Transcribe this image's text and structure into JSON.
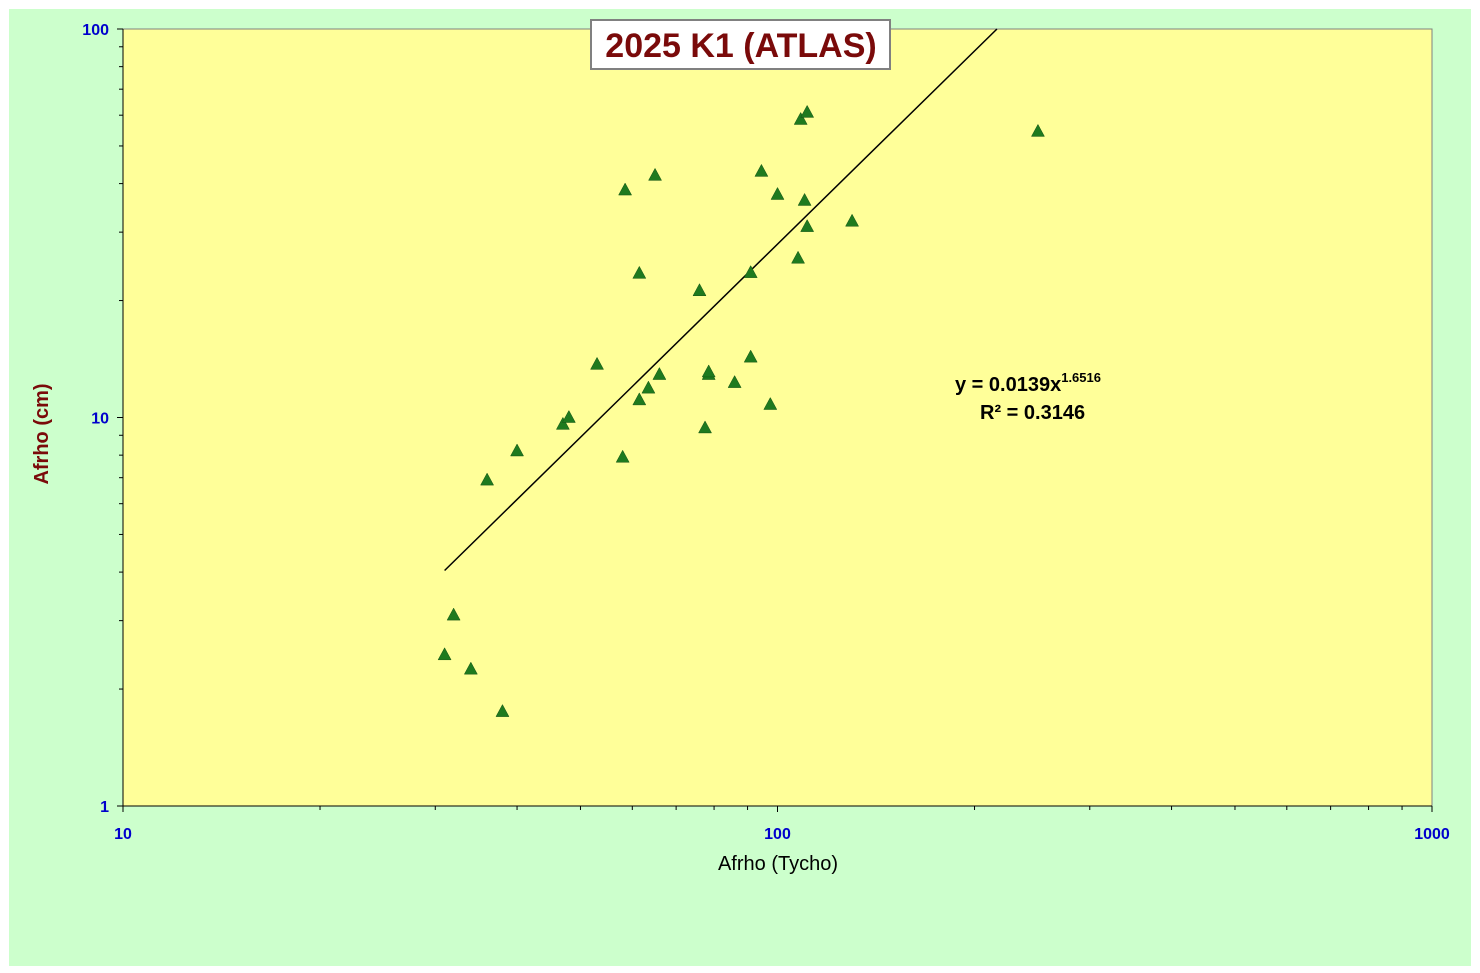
{
  "colors": {
    "chart_area_bg": "#ccffcc",
    "plot_bg": "#ffff99",
    "marker": "#1e7a1e",
    "trendline": "#000000",
    "title": "#7a0a0a",
    "tick_labels": "#0000cc"
  },
  "chart_data": {
    "type": "scatter",
    "title": "2025 K1 (ATLAS)",
    "xlabel": "Afrho (Tycho)",
    "ylabel": "Afrho (cm)",
    "xscale": "log",
    "yscale": "log",
    "xlim": [
      10,
      1000
    ],
    "ylim": [
      1,
      100
    ],
    "x_ticks": [
      "10",
      "100",
      "1000"
    ],
    "y_ticks": [
      "1",
      "10",
      "100"
    ],
    "grid": false,
    "legend": "none",
    "marker": "triangle",
    "series": [
      {
        "points": [
          [
            31,
            2.45
          ],
          [
            32,
            3.1
          ],
          [
            34,
            2.25
          ],
          [
            36,
            6.9
          ],
          [
            38,
            1.75
          ],
          [
            40,
            8.2
          ],
          [
            47,
            9.6
          ],
          [
            48,
            10.0
          ],
          [
            53,
            13.7
          ],
          [
            58,
            7.9
          ],
          [
            58.5,
            38.5
          ],
          [
            61.5,
            11.1
          ],
          [
            61.5,
            23.5
          ],
          [
            63.5,
            11.9
          ],
          [
            65,
            42
          ],
          [
            66,
            12.9
          ],
          [
            76,
            21.2
          ],
          [
            77.5,
            9.4
          ],
          [
            78.5,
            12.9
          ],
          [
            78.5,
            13.1
          ],
          [
            86,
            12.3
          ],
          [
            91,
            14.3
          ],
          [
            91,
            23.6
          ],
          [
            94.5,
            43
          ],
          [
            97.5,
            10.8
          ],
          [
            100,
            37.5
          ],
          [
            107.5,
            25.7
          ],
          [
            108.5,
            58.5
          ],
          [
            110,
            36.2
          ],
          [
            111,
            31
          ],
          [
            111,
            61
          ],
          [
            113.5,
            81
          ],
          [
            130,
            32
          ],
          [
            250,
            54.5
          ]
        ]
      }
    ],
    "trendline": {
      "type": "power",
      "coefficient": 0.0139,
      "exponent": 1.6516,
      "r_squared": 0.3146,
      "x_start": 31,
      "equation_text": "y = 0.0139x",
      "exponent_text": "1.6516",
      "r2_text": "R² = 0.3146"
    }
  }
}
